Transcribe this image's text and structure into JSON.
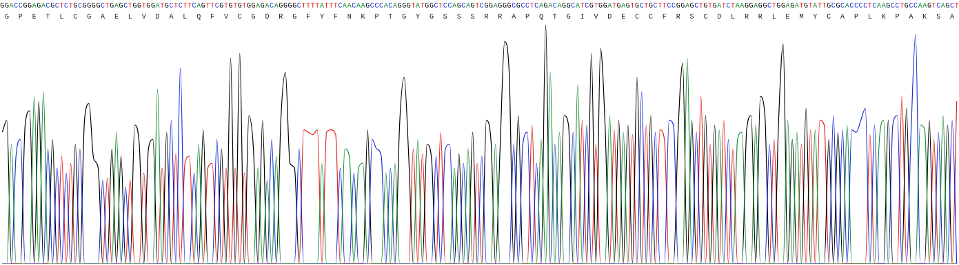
{
  "chart_data": {
    "type": "line",
    "sequence": "GGACCGGAGACGCTCTGCGGGGCTGAGCTGGTGGATGCTCTTCAGTTCGTGTGTGGAGACAGGGGCTTTTATTTCAACAAGCCCACAGGGTATGGCTCCAGCAGTCGGAGGGCGCCTCAGACAGGCATCGTGGATGAGTGCTGCTTCCGGAGCTGTGATCTAAGGAGGCTGGAGATGTATTGCGCACCCCTCAAGCCTGCCAAGTCAGCT",
    "translation": [
      "G",
      "P",
      "E",
      "T",
      "L",
      "C",
      "G",
      "A",
      "E",
      "L",
      "V",
      "D",
      "A",
      "L",
      "Q",
      "F",
      "V",
      "C",
      "G",
      "D",
      "R",
      "G",
      "F",
      "Y",
      "F",
      "N",
      "K",
      "P",
      "T",
      "G",
      "Y",
      "G",
      "S",
      "S",
      "S",
      "R",
      "R",
      "A",
      "P",
      "Q",
      "T",
      "G",
      "I",
      "V",
      "D",
      "E",
      "C",
      "C",
      "F",
      "R",
      "S",
      "C",
      "D",
      "L",
      "R",
      "R",
      "L",
      "E",
      "M",
      "Y",
      "C",
      "A",
      "P",
      "L",
      "K",
      "P",
      "A",
      "K",
      "S",
      "A"
    ],
    "values": [
      55,
      60,
      50,
      45,
      52,
      58,
      64,
      70,
      68,
      72,
      48,
      52,
      40,
      45,
      38,
      42,
      50,
      48,
      60,
      67,
      44,
      40,
      35,
      36,
      48,
      55,
      45,
      32,
      35,
      58,
      50,
      38,
      48,
      52,
      73,
      40,
      55,
      60,
      46,
      82,
      42,
      45,
      38,
      50,
      56,
      40,
      42,
      52,
      48,
      40,
      86,
      40,
      88,
      38,
      62,
      48,
      40,
      60,
      35,
      52,
      45,
      60,
      80,
      42,
      40,
      48,
      56,
      55,
      54,
      56,
      42,
      55,
      56,
      54,
      40,
      48,
      45,
      38,
      40,
      42,
      56,
      52,
      48,
      45,
      38,
      40,
      42,
      58,
      78,
      45,
      48,
      52,
      46,
      50,
      44,
      45,
      55,
      48,
      50,
      40,
      46,
      42,
      48,
      55,
      42,
      45,
      60,
      52,
      50,
      48,
      93,
      80,
      50,
      62,
      50,
      55,
      58,
      42,
      52,
      100,
      80,
      50,
      55,
      62,
      58,
      55,
      75,
      60,
      58,
      88,
      50,
      90,
      58,
      62,
      56,
      60,
      55,
      58,
      54,
      78,
      72,
      58,
      62,
      55,
      56,
      52,
      60,
      58,
      56,
      84,
      86,
      60,
      55,
      70,
      62,
      50,
      58,
      56,
      60,
      52,
      48,
      52,
      55,
      56,
      62,
      58,
      70,
      62,
      50,
      52,
      60,
      92,
      60,
      52,
      55,
      50,
      65,
      56,
      56,
      60,
      58,
      52,
      62,
      55,
      56,
      58,
      56,
      55,
      60,
      65,
      54,
      58,
      50,
      60,
      60,
      58,
      62,
      70,
      65,
      55,
      96,
      58,
      56,
      60,
      52,
      55,
      62,
      58,
      60,
      68
    ],
    "series": [
      {
        "name": "A",
        "color": "#1b8f3a"
      },
      {
        "name": "C",
        "color": "#1c2fd6"
      },
      {
        "name": "G",
        "color": "#000000"
      },
      {
        "name": "T",
        "color": "#e3201b"
      }
    ],
    "ylim": [
      0,
      100
    ],
    "tick_labels": false,
    "grid": false
  }
}
